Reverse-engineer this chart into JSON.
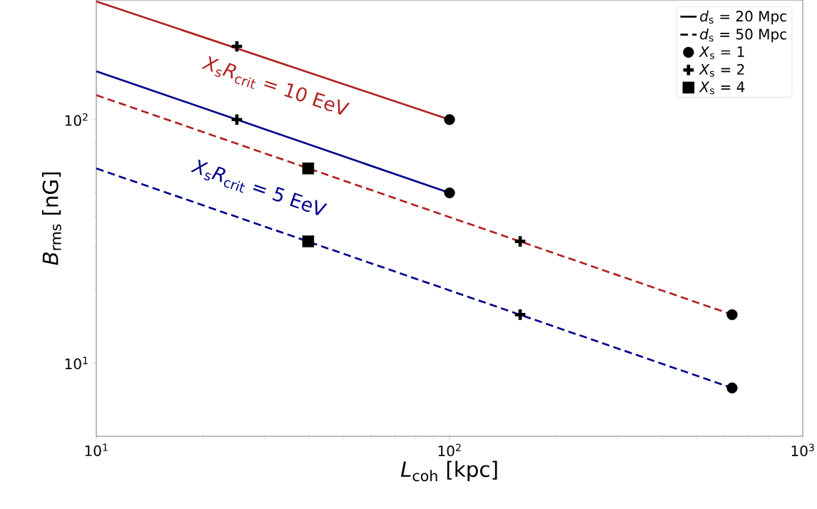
{
  "chart_data": {
    "type": "line",
    "xlabel": "*L*$_{coh}$ [kpc]",
    "ylabel": "*B*$_{rms}$ [nG]",
    "log": "xy",
    "xlim": [
      10,
      1000
    ],
    "ylim": [
      5,
      310
    ],
    "xticks": [
      {
        "value": 10,
        "label": "10$^{1}$"
      },
      {
        "value": 100,
        "label": "10$^{2}$"
      },
      {
        "value": 1000,
        "label": "10$^{3}$"
      }
    ],
    "yticks": [
      {
        "value": 10,
        "label": "10$^{1}$"
      },
      {
        "value": 100,
        "label": "10$^{2}$"
      }
    ],
    "legend": "top right",
    "annotations": [
      "*X*$_{s}$*R*$_{crit}$ = 10 EeV",
      "*X*$_{s}$*R*$_{crit}$ = 5 EeV"
    ],
    "series": [
      {
        "name": "*d*$_{s}$ = 20 Mpc",
        "color": "#000000",
        "line_style": "solid"
      },
      {
        "name": "*d*$_{s}$ = 50 Mpc",
        "color": "#000000",
        "line_style": "dashed"
      },
      {
        "color": "#b22222",
        "line_style": "solid",
        "x": [
          10,
          100
        ],
        "values": [
          306,
          100
        ]
      },
      {
        "color": "#00008b",
        "line_style": "solid",
        "x": [
          10,
          100
        ],
        "values": [
          158,
          50
        ]
      },
      {
        "color": "#b22222",
        "line_style": "dashed",
        "x": [
          10,
          631
        ],
        "values": [
          126,
          15.8
        ]
      },
      {
        "color": "#00008b",
        "line_style": "dashed",
        "x": [
          10,
          631
        ],
        "values": [
          63,
          7.9
        ]
      },
      {
        "name": "*X*$_{s}$ = 1",
        "type": "scatter",
        "color": "#000000",
        "marker": "circle",
        "x": [
          100,
          100,
          631,
          631
        ],
        "values": [
          100,
          50,
          15.8,
          7.9
        ]
      },
      {
        "name": "*X*$_{s}$ = 2",
        "type": "scatter",
        "color": "#000000",
        "marker": "cross",
        "x": [
          25,
          25,
          158.5,
          158.5
        ],
        "values": [
          200,
          100,
          31.6,
          15.8
        ]
      },
      {
        "name": "*X*$_{s}$ = 4",
        "type": "scatter",
        "color": "#000000",
        "marker": "square",
        "x": [
          39.8,
          39.8
        ],
        "values": [
          63,
          31.6
        ]
      }
    ]
  }
}
